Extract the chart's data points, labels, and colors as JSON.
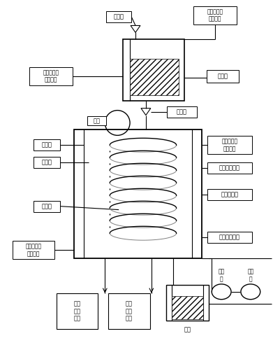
{
  "bg_color": "#ffffff",
  "labels": {
    "fangkong_fa": "放空阀",
    "liaoyeguan_re_chu": "料液罐加热\n介质出口",
    "liaoyeguan_re_ru": "料液罐加热\n介质入口",
    "liaoyeguan": "料液罐",
    "dianji": "电机",
    "liuliang_fa": "流量阀",
    "fenbufei": "分布器",
    "guamo_qi": "刮膜器",
    "lengnin_guan": "冷凝管",
    "zhengliu_re_chu": "蒸馏器加热\n介质出口",
    "lengnin_chu": "冷凝介质出口",
    "fenzi_zhengliu": "分子蒸馏器",
    "lengnin_ru": "冷凝介质入口",
    "zhengliu_re_ru": "蒸馏器加热\n介质入口",
    "zhongzu": "重组\n分装\n收罐",
    "qingzu": "轻组\n分装\n收罐",
    "lengju": "冷阱",
    "erji_beng": "二级\n泵",
    "yiji_beng": "一级\n泵"
  }
}
